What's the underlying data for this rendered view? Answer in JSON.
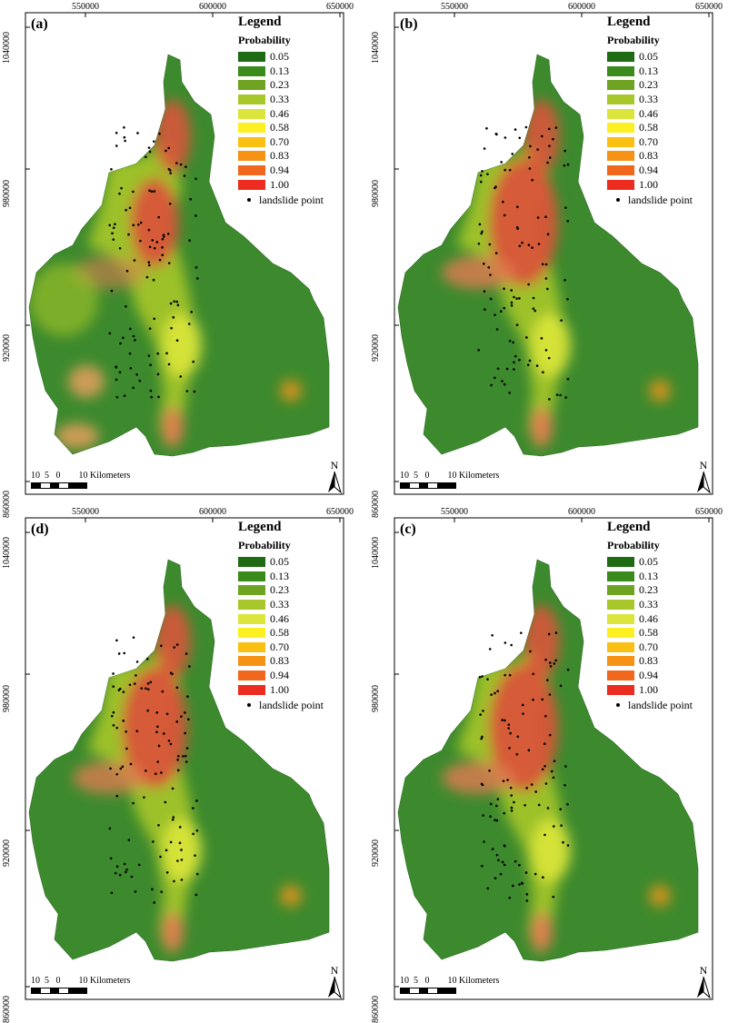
{
  "x_ticks": [
    "550000",
    "600000",
    "650000"
  ],
  "y_ticks": [
    "1040000",
    "980000",
    "920000",
    "860000"
  ],
  "legend": {
    "title": "Legend",
    "subtitle": "Probability",
    "classes": [
      {
        "label": "0.05",
        "color": "#1f6b14"
      },
      {
        "label": "0.13",
        "color": "#3a8a1c"
      },
      {
        "label": "0.23",
        "color": "#6ea421"
      },
      {
        "label": "0.33",
        "color": "#a7c72a"
      },
      {
        "label": "0.46",
        "color": "#dbe53b"
      },
      {
        "label": "0.58",
        "color": "#fcf022"
      },
      {
        "label": "0.70",
        "color": "#f9c013"
      },
      {
        "label": "0.83",
        "color": "#f69315"
      },
      {
        "label": "0.94",
        "color": "#f1671d"
      },
      {
        "label": "1.00",
        "color": "#ec2c1e"
      }
    ],
    "point_label": "landslide point"
  },
  "scale": {
    "numbers": "10  5   0        10 Kilometers"
  },
  "north_label": "N",
  "panels": [
    {
      "label": "(a)"
    },
    {
      "label": "(b)"
    },
    {
      "label": "(d)"
    },
    {
      "label": "(c)"
    }
  ]
}
